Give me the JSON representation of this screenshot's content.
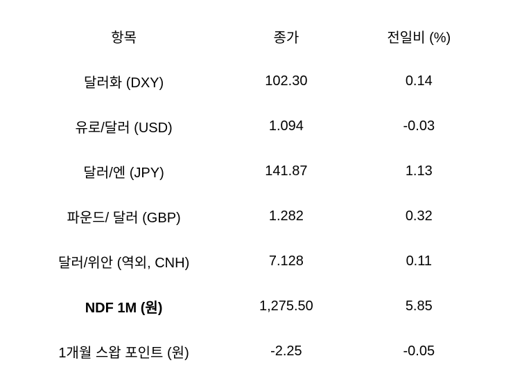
{
  "table": {
    "columns": [
      "항목",
      "종가",
      "전일비 (%)"
    ],
    "rows": [
      {
        "label": "달러화 (DXY)",
        "close": "102.30",
        "change": "0.14",
        "bold": false
      },
      {
        "label": "유로/달러 (USD)",
        "close": "1.094",
        "change": "-0.03",
        "bold": false
      },
      {
        "label": "달러/엔 (JPY)",
        "close": "141.87",
        "change": "1.13",
        "bold": false
      },
      {
        "label": "파운드/ 달러 (GBP)",
        "close": "1.282",
        "change": "0.32",
        "bold": false
      },
      {
        "label": "달러/위안 (역외, CNH)",
        "close": "7.128",
        "change": "0.11",
        "bold": false
      },
      {
        "label": "NDF 1M (원)",
        "close": "1,275.50",
        "change": "5.85",
        "bold": true
      },
      {
        "label": "1개월 스왑 포인트 (원)",
        "close": "-2.25",
        "change": "-0.05",
        "bold": false
      }
    ],
    "styling": {
      "background_color": "#ffffff",
      "text_color": "#000000",
      "font_size": 20,
      "header_font_weight": 400,
      "row_font_weight": 400,
      "bold_row_label_weight": 700,
      "cell_padding_vertical": 18,
      "cell_padding_horizontal": 8,
      "text_align": "center",
      "col_widths_pct": [
        42,
        29,
        29
      ]
    }
  }
}
